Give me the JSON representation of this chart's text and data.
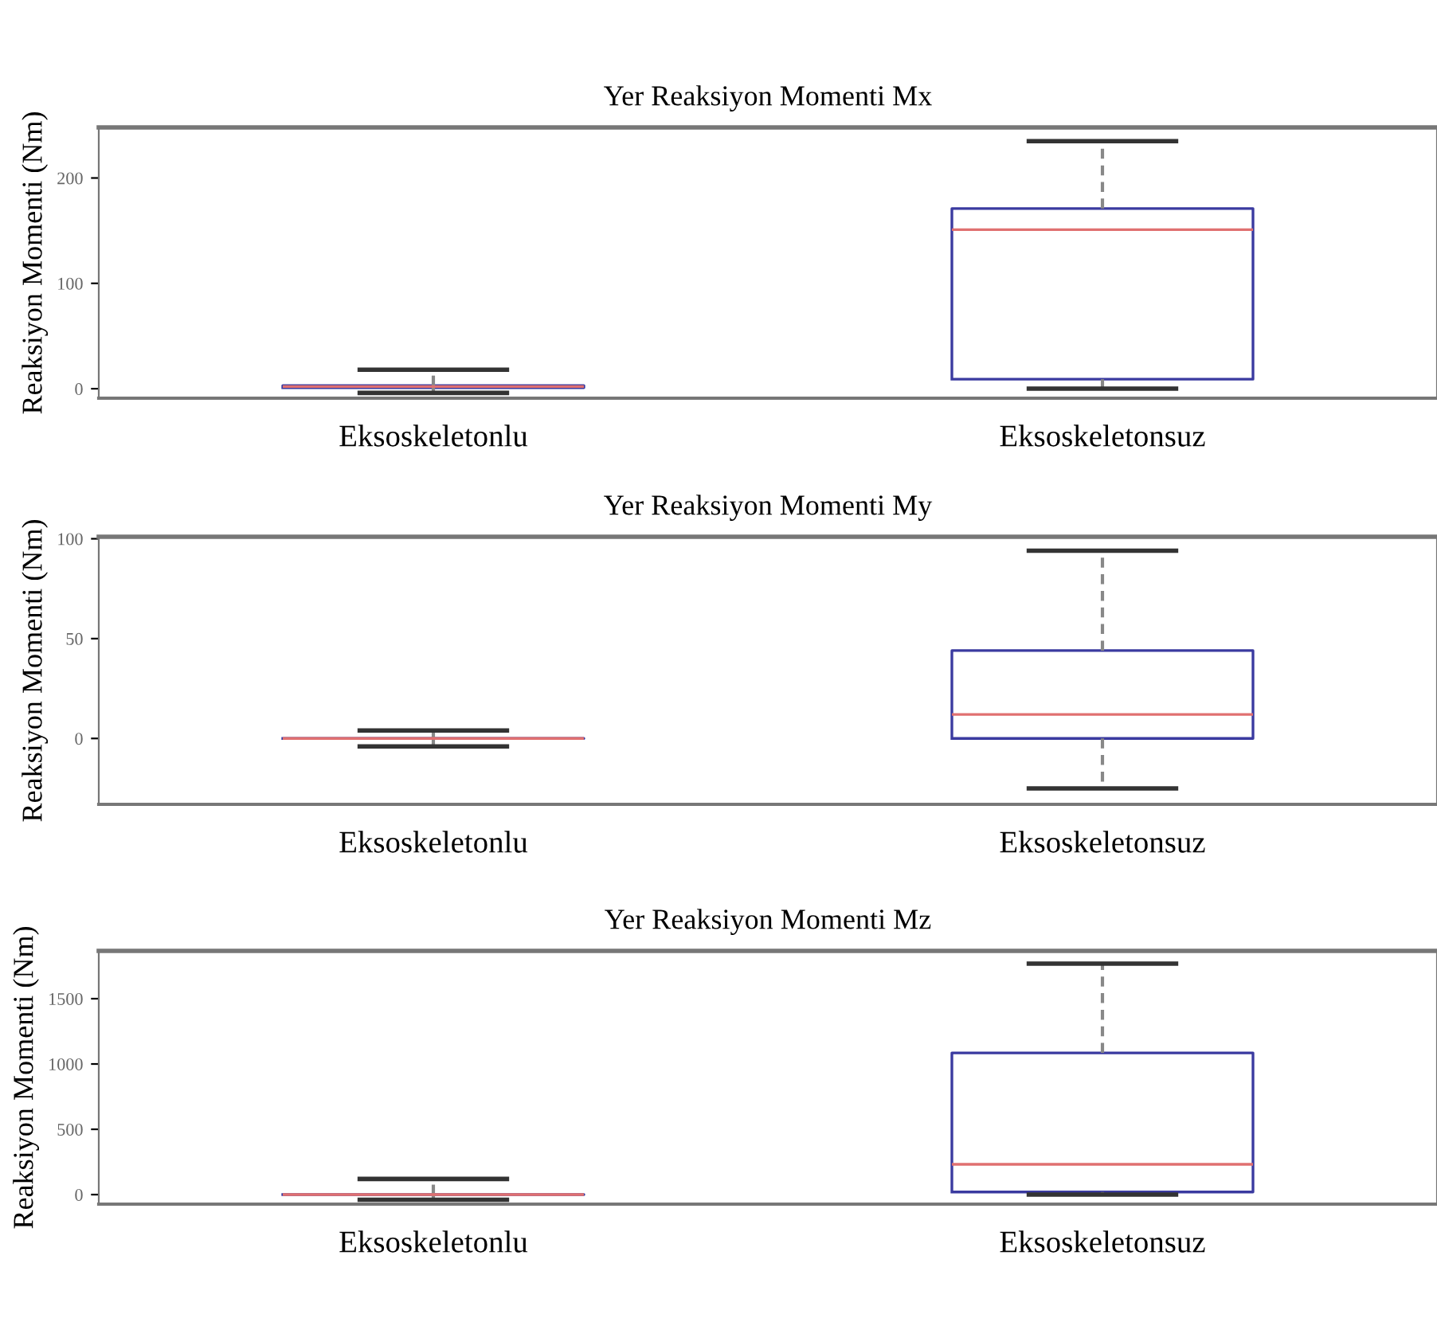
{
  "chart_data": [
    {
      "type": "box",
      "title": "Yer Reaksiyon Momenti Mx",
      "ylabel": "Reaksiyon Momenti (Nm)",
      "categories": [
        "Eksoskeletonlu",
        "Eksoskeletonsuz"
      ],
      "ylim": [
        -9,
        248
      ],
      "yticks": [
        0,
        100,
        200
      ],
      "grid": false,
      "color": "#3a3aa0",
      "boxes": [
        {
          "low": -4,
          "q1": 1,
          "median": 2,
          "q3": 3,
          "high": 18
        },
        {
          "low": 0,
          "q1": 9,
          "median": 151,
          "q3": 171,
          "high": 235
        }
      ]
    },
    {
      "type": "box",
      "title": "Yer Reaksiyon Momenti My",
      "ylabel": "Reaksiyon Momenti (Nm)",
      "categories": [
        "Eksoskeletonlu",
        "Eksoskeletonsuz"
      ],
      "ylim": [
        -33,
        101
      ],
      "yticks": [
        0,
        50,
        100
      ],
      "grid": false,
      "color": "#3a3aa0",
      "boxes": [
        {
          "low": -4,
          "q1": 0,
          "median": 0,
          "q3": 0,
          "high": 4
        },
        {
          "low": -25,
          "q1": 0,
          "median": 12,
          "q3": 44,
          "high": 94
        }
      ]
    },
    {
      "type": "box",
      "title": "Yer Reaksiyon Momenti Mz",
      "ylabel": "Reaksiyon Momenti (Nm)",
      "categories": [
        "Eksoskeletonlu",
        "Eksoskeletonsuz"
      ],
      "ylim": [
        -73,
        1866
      ],
      "yticks": [
        0,
        500,
        1000,
        1500
      ],
      "grid": false,
      "color": "#3a3aa0",
      "boxes": [
        {
          "low": -40,
          "q1": 0,
          "median": 0,
          "q3": 0,
          "high": 120
        },
        {
          "low": 0,
          "q1": 20,
          "median": 232,
          "q3": 1085,
          "high": 1768
        }
      ]
    }
  ]
}
